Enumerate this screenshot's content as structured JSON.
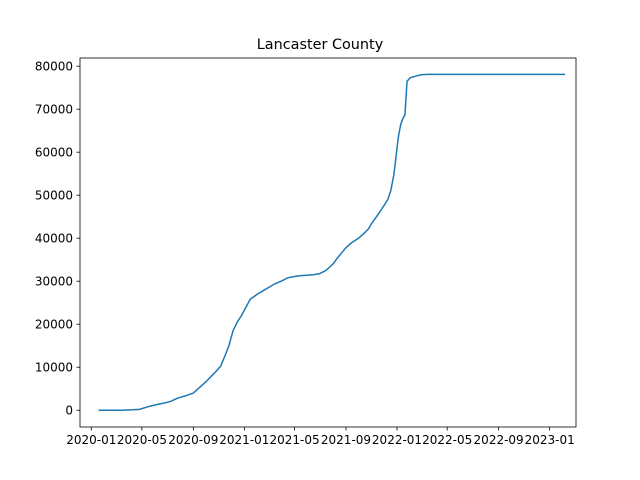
{
  "chart_data": {
    "type": "line",
    "title": "Lancaster County",
    "xlabel": "",
    "ylabel": "",
    "x_axis_type": "date",
    "xlim": [
      "2019-12-05",
      "2023-03-05"
    ],
    "ylim": [
      -3900,
      81900
    ],
    "grid": false,
    "legend": "none",
    "x_ticks": [
      "2020-01",
      "2020-05",
      "2020-09",
      "2021-01",
      "2021-05",
      "2021-09",
      "2022-01",
      "2022-05",
      "2022-09",
      "2023-01"
    ],
    "y_ticks": [
      "0",
      "10000",
      "20000",
      "30000",
      "40000",
      "50000",
      "60000",
      "70000",
      "80000"
    ],
    "line_color": "#1f77b4",
    "series": [
      {
        "x": [
          "2020-01-20",
          "2020-02-15",
          "2020-03-15",
          "2020-03-25",
          "2020-04-10",
          "2020-04-25",
          "2020-05-15",
          "2020-06-05",
          "2020-06-25",
          "2020-07-10",
          "2020-07-25",
          "2020-08-15",
          "2020-09-01",
          "2020-09-15",
          "2020-10-01",
          "2020-10-15",
          "2020-10-25",
          "2020-11-05",
          "2020-11-15",
          "2020-11-25",
          "2020-12-05",
          "2020-12-15",
          "2020-12-25",
          "2021-01-05",
          "2021-01-15",
          "2021-02-01",
          "2021-02-15",
          "2021-03-01",
          "2021-03-15",
          "2021-04-01",
          "2021-04-15",
          "2021-05-01",
          "2021-05-15",
          "2021-06-01",
          "2021-06-15",
          "2021-07-01",
          "2021-07-15",
          "2021-08-01",
          "2021-08-10",
          "2021-08-20",
          "2021-09-01",
          "2021-09-15",
          "2021-10-01",
          "2021-10-15",
          "2021-10-25",
          "2021-11-01",
          "2021-11-10",
          "2021-11-20",
          "2021-12-01",
          "2021-12-10",
          "2021-12-17",
          "2021-12-24",
          "2021-12-28",
          "2022-01-01",
          "2022-01-05",
          "2022-01-10",
          "2022-01-15",
          "2022-01-20",
          "2022-01-25",
          "2022-01-30",
          "2022-01-31",
          "2022-02-05",
          "2022-02-15",
          "2022-02-28",
          "2022-03-15",
          "2022-04-01",
          "2022-05-01",
          "2022-09-01",
          "2023-01-01",
          "2023-02-05"
        ],
        "values": [
          0,
          0,
          0,
          50,
          100,
          200,
          800,
          1300,
          1700,
          2100,
          2800,
          3400,
          4000,
          5200,
          6600,
          8000,
          9000,
          10200,
          12500,
          15000,
          18500,
          20500,
          22000,
          24000,
          25800,
          27000,
          27800,
          28600,
          29400,
          30100,
          30800,
          31100,
          31300,
          31400,
          31500,
          31800,
          32500,
          34000,
          35200,
          36400,
          37800,
          39000,
          40000,
          41200,
          42200,
          43400,
          44600,
          46000,
          47600,
          49000,
          51000,
          54500,
          57500,
          61000,
          64000,
          66500,
          67800,
          68700,
          76500,
          77000,
          77200,
          77400,
          77700,
          78000,
          78100,
          78100,
          78100,
          78100,
          78100,
          78100
        ]
      }
    ]
  }
}
